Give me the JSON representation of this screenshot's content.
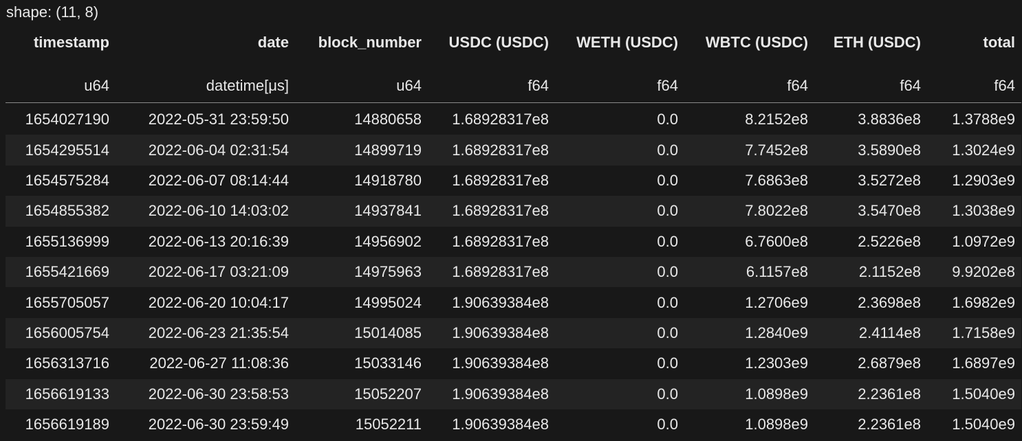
{
  "shape_text": "shape: (11, 8)",
  "columns": [
    {
      "name": "timestamp",
      "dtype": "u64"
    },
    {
      "name": "date",
      "dtype": "datetime[μs]"
    },
    {
      "name": "block_number",
      "dtype": "u64"
    },
    {
      "name": "USDC (USDC)",
      "dtype": "f64"
    },
    {
      "name": "WETH (USDC)",
      "dtype": "f64"
    },
    {
      "name": "WBTC (USDC)",
      "dtype": "f64"
    },
    {
      "name": "ETH (USDC)",
      "dtype": "f64"
    },
    {
      "name": "total",
      "dtype": "f64"
    }
  ],
  "rows": [
    [
      "1654027190",
      "2022-05-31 23:59:50",
      "14880658",
      "1.68928317e8",
      "0.0",
      "8.2152e8",
      "3.8836e8",
      "1.3788e9"
    ],
    [
      "1654295514",
      "2022-06-04 02:31:54",
      "14899719",
      "1.68928317e8",
      "0.0",
      "7.7452e8",
      "3.5890e8",
      "1.3024e9"
    ],
    [
      "1654575284",
      "2022-06-07 08:14:44",
      "14918780",
      "1.68928317e8",
      "0.0",
      "7.6863e8",
      "3.5272e8",
      "1.2903e9"
    ],
    [
      "1654855382",
      "2022-06-10 14:03:02",
      "14937841",
      "1.68928317e8",
      "0.0",
      "7.8022e8",
      "3.5470e8",
      "1.3038e9"
    ],
    [
      "1655136999",
      "2022-06-13 20:16:39",
      "14956902",
      "1.68928317e8",
      "0.0",
      "6.7600e8",
      "2.5226e8",
      "1.0972e9"
    ],
    [
      "1655421669",
      "2022-06-17 03:21:09",
      "14975963",
      "1.68928317e8",
      "0.0",
      "6.1157e8",
      "2.1152e8",
      "9.9202e8"
    ],
    [
      "1655705057",
      "2022-06-20 10:04:17",
      "14995024",
      "1.90639384e8",
      "0.0",
      "1.2706e9",
      "2.3698e8",
      "1.6982e9"
    ],
    [
      "1656005754",
      "2022-06-23 21:35:54",
      "15014085",
      "1.90639384e8",
      "0.0",
      "1.2840e9",
      "2.4114e8",
      "1.7158e9"
    ],
    [
      "1656313716",
      "2022-06-27 11:08:36",
      "15033146",
      "1.90639384e8",
      "0.0",
      "1.2303e9",
      "2.6879e8",
      "1.6897e9"
    ],
    [
      "1656619133",
      "2022-06-30 23:58:53",
      "15052207",
      "1.90639384e8",
      "0.0",
      "1.0898e9",
      "2.2361e8",
      "1.5040e9"
    ],
    [
      "1656619189",
      "2022-06-30 23:59:49",
      "15052211",
      "1.90639384e8",
      "0.0",
      "1.0898e9",
      "2.2361e8",
      "1.5040e9"
    ]
  ],
  "colors": {
    "background": "#181818",
    "row_stripe": "#232323",
    "text": "#e8e8e8",
    "header_rule": "#8a8a8a"
  }
}
